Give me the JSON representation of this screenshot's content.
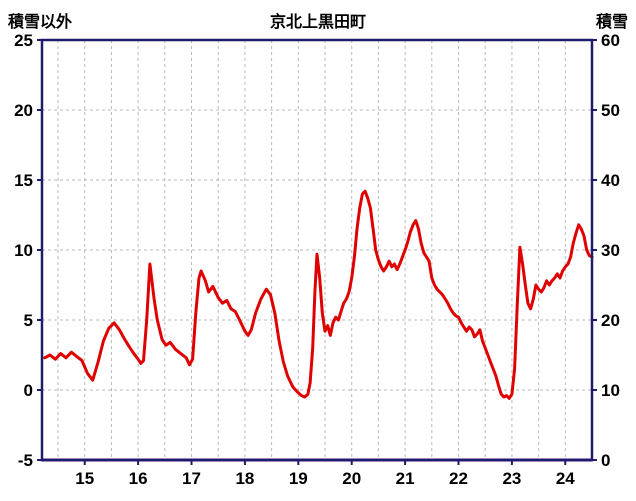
{
  "header": {
    "left_axis_title": "積雪以外",
    "chart_title": "京北上黒田町",
    "right_axis_title": "積雪"
  },
  "chart_data": {
    "type": "line",
    "title": "京北上黒田町",
    "left_axis_label": "積雪以外",
    "right_axis_label": "積雪",
    "xlim": [
      14.2,
      24.5
    ],
    "ylim_left": [
      -5,
      25
    ],
    "ylim_right": [
      0,
      60
    ],
    "xticks": [
      15,
      16,
      17,
      18,
      19,
      20,
      21,
      22,
      23,
      24
    ],
    "yticks_left": [
      25,
      20,
      15,
      10,
      5,
      0,
      -5
    ],
    "yticks_right": [
      60,
      50,
      40,
      30,
      20,
      10,
      0
    ],
    "grid": true,
    "grid_x_step": 0.5,
    "grid_y_values": [
      0,
      5,
      10,
      15,
      20
    ],
    "legend_position": "none",
    "colors": {
      "frame": "#1d1d6b",
      "grid": "#b9b9b9",
      "background": "#ffffff",
      "text": "#000000",
      "series_main": "#e00000",
      "series_snow": "#5a00a0"
    },
    "series": [
      {
        "name": "積雪以外",
        "axis": "left",
        "color": "#e00000",
        "width": 3,
        "points": [
          [
            14.25,
            2.3
          ],
          [
            14.35,
            2.5
          ],
          [
            14.45,
            2.2
          ],
          [
            14.55,
            2.6
          ],
          [
            14.65,
            2.3
          ],
          [
            14.75,
            2.7
          ],
          [
            14.85,
            2.4
          ],
          [
            14.95,
            2.1
          ],
          [
            15.05,
            1.2
          ],
          [
            15.15,
            0.7
          ],
          [
            15.25,
            2.0
          ],
          [
            15.35,
            3.5
          ],
          [
            15.45,
            4.4
          ],
          [
            15.55,
            4.8
          ],
          [
            15.65,
            4.3
          ],
          [
            15.75,
            3.6
          ],
          [
            15.85,
            3.0
          ],
          [
            15.92,
            2.6
          ],
          [
            16.0,
            2.2
          ],
          [
            16.05,
            1.9
          ],
          [
            16.1,
            2.1
          ],
          [
            16.16,
            5.0
          ],
          [
            16.22,
            9.0
          ],
          [
            16.3,
            6.5
          ],
          [
            16.36,
            5.0
          ],
          [
            16.45,
            3.6
          ],
          [
            16.52,
            3.2
          ],
          [
            16.6,
            3.4
          ],
          [
            16.7,
            2.9
          ],
          [
            16.8,
            2.6
          ],
          [
            16.9,
            2.3
          ],
          [
            16.96,
            1.8
          ],
          [
            17.02,
            2.2
          ],
          [
            17.08,
            5.5
          ],
          [
            17.14,
            8.0
          ],
          [
            17.18,
            8.5
          ],
          [
            17.26,
            7.8
          ],
          [
            17.32,
            7.0
          ],
          [
            17.4,
            7.4
          ],
          [
            17.5,
            6.6
          ],
          [
            17.58,
            6.2
          ],
          [
            17.66,
            6.4
          ],
          [
            17.74,
            5.8
          ],
          [
            17.82,
            5.6
          ],
          [
            17.9,
            5.0
          ],
          [
            18.0,
            4.2
          ],
          [
            18.06,
            3.9
          ],
          [
            18.12,
            4.3
          ],
          [
            18.2,
            5.5
          ],
          [
            18.3,
            6.5
          ],
          [
            18.4,
            7.2
          ],
          [
            18.48,
            6.8
          ],
          [
            18.56,
            5.5
          ],
          [
            18.64,
            3.5
          ],
          [
            18.72,
            2.0
          ],
          [
            18.8,
            1.0
          ],
          [
            18.9,
            0.2
          ],
          [
            19.0,
            -0.2
          ],
          [
            19.06,
            -0.4
          ],
          [
            19.12,
            -0.5
          ],
          [
            19.18,
            -0.3
          ],
          [
            19.22,
            0.5
          ],
          [
            19.27,
            3.0
          ],
          [
            19.31,
            7.0
          ],
          [
            19.35,
            9.7
          ],
          [
            19.4,
            8.0
          ],
          [
            19.45,
            5.5
          ],
          [
            19.5,
            4.2
          ],
          [
            19.55,
            4.6
          ],
          [
            19.6,
            3.9
          ],
          [
            19.65,
            4.8
          ],
          [
            19.7,
            5.2
          ],
          [
            19.75,
            5.0
          ],
          [
            19.8,
            5.6
          ],
          [
            19.85,
            6.2
          ],
          [
            19.9,
            6.5
          ],
          [
            19.95,
            7.0
          ],
          [
            20.0,
            8.0
          ],
          [
            20.05,
            9.5
          ],
          [
            20.1,
            11.5
          ],
          [
            20.15,
            13.0
          ],
          [
            20.2,
            14.0
          ],
          [
            20.25,
            14.2
          ],
          [
            20.3,
            13.7
          ],
          [
            20.35,
            13.0
          ],
          [
            20.4,
            11.5
          ],
          [
            20.45,
            10.0
          ],
          [
            20.5,
            9.3
          ],
          [
            20.55,
            8.8
          ],
          [
            20.6,
            8.5
          ],
          [
            20.65,
            8.8
          ],
          [
            20.7,
            9.2
          ],
          [
            20.75,
            8.8
          ],
          [
            20.8,
            9.0
          ],
          [
            20.85,
            8.6
          ],
          [
            20.9,
            9.0
          ],
          [
            20.95,
            9.5
          ],
          [
            21.0,
            10.0
          ],
          [
            21.05,
            10.6
          ],
          [
            21.1,
            11.3
          ],
          [
            21.15,
            11.8
          ],
          [
            21.2,
            12.1
          ],
          [
            21.25,
            11.5
          ],
          [
            21.3,
            10.5
          ],
          [
            21.35,
            9.8
          ],
          [
            21.4,
            9.5
          ],
          [
            21.45,
            9.2
          ],
          [
            21.5,
            8.0
          ],
          [
            21.55,
            7.5
          ],
          [
            21.6,
            7.2
          ],
          [
            21.65,
            7.0
          ],
          [
            21.7,
            6.8
          ],
          [
            21.75,
            6.5
          ],
          [
            21.8,
            6.2
          ],
          [
            21.85,
            5.8
          ],
          [
            21.9,
            5.5
          ],
          [
            21.95,
            5.3
          ],
          [
            22.0,
            5.2
          ],
          [
            22.05,
            4.8
          ],
          [
            22.1,
            4.5
          ],
          [
            22.15,
            4.2
          ],
          [
            22.2,
            4.5
          ],
          [
            22.25,
            4.3
          ],
          [
            22.3,
            3.8
          ],
          [
            22.35,
            4.0
          ],
          [
            22.4,
            4.3
          ],
          [
            22.45,
            3.5
          ],
          [
            22.5,
            3.0
          ],
          [
            22.55,
            2.5
          ],
          [
            22.6,
            2.0
          ],
          [
            22.65,
            1.5
          ],
          [
            22.7,
            1.0
          ],
          [
            22.75,
            0.3
          ],
          [
            22.8,
            -0.3
          ],
          [
            22.85,
            -0.5
          ],
          [
            22.9,
            -0.4
          ],
          [
            22.95,
            -0.6
          ],
          [
            23.0,
            -0.3
          ],
          [
            23.05,
            1.5
          ],
          [
            23.1,
            6.0
          ],
          [
            23.15,
            10.2
          ],
          [
            23.2,
            9.0
          ],
          [
            23.25,
            7.5
          ],
          [
            23.3,
            6.2
          ],
          [
            23.35,
            5.8
          ],
          [
            23.4,
            6.5
          ],
          [
            23.45,
            7.5
          ],
          [
            23.5,
            7.2
          ],
          [
            23.55,
            7.0
          ],
          [
            23.6,
            7.3
          ],
          [
            23.65,
            7.8
          ],
          [
            23.7,
            7.5
          ],
          [
            23.75,
            7.8
          ],
          [
            23.8,
            8.0
          ],
          [
            23.85,
            8.3
          ],
          [
            23.9,
            8.0
          ],
          [
            23.95,
            8.5
          ],
          [
            24.0,
            8.8
          ],
          [
            24.05,
            9.0
          ],
          [
            24.1,
            9.5
          ],
          [
            24.15,
            10.5
          ],
          [
            24.2,
            11.2
          ],
          [
            24.25,
            11.8
          ],
          [
            24.3,
            11.5
          ],
          [
            24.35,
            11.0
          ],
          [
            24.4,
            10.0
          ],
          [
            24.45,
            9.6
          ],
          [
            24.5,
            9.5
          ]
        ]
      },
      {
        "name": "積雪",
        "axis": "right",
        "color": "#5a00a0",
        "width": 3,
        "points": [
          [
            14.2,
            0
          ],
          [
            24.5,
            0
          ]
        ]
      }
    ]
  }
}
